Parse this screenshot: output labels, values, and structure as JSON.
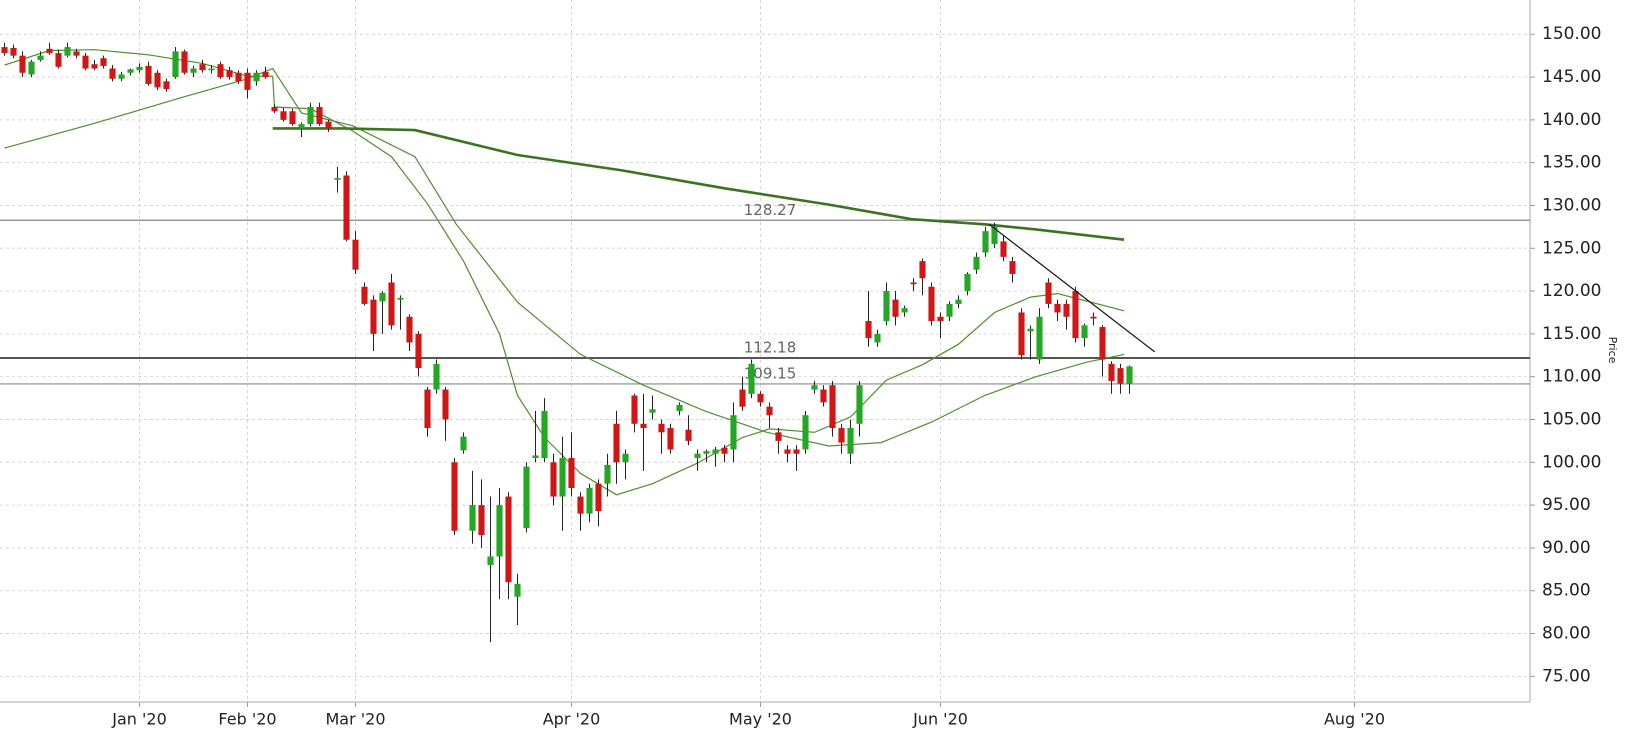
{
  "chart_data": {
    "type": "candlestick",
    "y_label": "Price",
    "up_color": "#22a822",
    "down_color": "#d11616",
    "wick_color": "#222222",
    "grid": true,
    "xlim": [
      -0.5,
      169.5
    ],
    "ylim": [
      72,
      154
    ],
    "xticks": [
      {
        "value": 15,
        "label": "Jan '20"
      },
      {
        "value": 27,
        "label": "Feb '20"
      },
      {
        "value": 39,
        "label": "Mar '20"
      },
      {
        "value": 63,
        "label": "Apr '20"
      },
      {
        "value": 84,
        "label": "May '20"
      },
      {
        "value": 104,
        "label": "Jun '20"
      },
      {
        "value": 150,
        "label": "Aug '20"
      }
    ],
    "yticks": [
      {
        "value": 75,
        "label": "75.00"
      },
      {
        "value": 80,
        "label": "80.00"
      },
      {
        "value": 85,
        "label": "85.00"
      },
      {
        "value": 90,
        "label": "90.00"
      },
      {
        "value": 95,
        "label": "95.00"
      },
      {
        "value": 100,
        "label": "100.00"
      },
      {
        "value": 105,
        "label": "105.00"
      },
      {
        "value": 110,
        "label": "110.00"
      },
      {
        "value": 115,
        "label": "115.00"
      },
      {
        "value": 120,
        "label": "120.00"
      },
      {
        "value": 125,
        "label": "125.00"
      },
      {
        "value": 130,
        "label": "130.00"
      },
      {
        "value": 135,
        "label": "135.00"
      },
      {
        "value": 140,
        "label": "140.00"
      },
      {
        "value": 145,
        "label": "145.00"
      },
      {
        "value": 150,
        "label": "150.00"
      }
    ],
    "open": [
      148.5,
      148.4,
      147.5,
      145.3,
      147,
      148.3,
      147.8,
      147.5,
      148,
      147.5,
      146.5,
      147.2,
      146,
      144.8,
      145.5,
      145.8,
      146.3,
      145.5,
      144.5,
      145,
      148,
      145.5,
      146.5,
      145.8,
      146.5,
      145.8,
      145.5,
      145.5,
      144.5,
      145.6,
      141.5,
      141,
      141,
      139,
      139.5,
      141.5,
      139.8,
      133,
      133.5,
      126,
      120.5,
      119,
      118.8,
      121,
      119,
      117,
      115,
      108.5,
      108.5,
      108.5,
      100,
      101.4,
      92,
      95,
      88,
      89,
      96,
      84.3,
      92.3,
      100.5,
      100.5,
      100,
      96,
      100.5,
      96,
      94,
      97.5,
      97.5,
      104.5,
      100,
      107.8,
      104.5,
      105.8,
      104.5,
      104,
      106,
      103.8,
      100.5,
      101,
      101,
      101.7,
      101.5,
      108.5,
      108,
      108,
      106.5,
      103.5,
      101.5,
      101.5,
      101.5,
      108.5,
      108.5,
      109,
      104,
      101,
      104.5,
      116.5,
      114,
      116.5,
      119,
      117.5,
      121,
      123.5,
      120.5,
      117,
      117,
      118.5,
      120,
      122.5,
      124.5,
      125.5,
      125.8,
      123.5,
      117.5,
      115.3,
      112,
      121,
      118.5,
      118.5,
      120,
      114.5,
      117,
      115.8,
      111.5,
      111,
      109.2
    ],
    "high": [
      149,
      148.8,
      148,
      147,
      148,
      149,
      148.2,
      149,
      148.3,
      147.8,
      147,
      147.5,
      146.4,
      145.6,
      146,
      146.6,
      146.8,
      145.8,
      144.8,
      148.5,
      148.2,
      146.3,
      147,
      146.4,
      146.8,
      146.2,
      145.8,
      146,
      145.8,
      146.2,
      141.8,
      141.4,
      141.3,
      139.7,
      142,
      142,
      140,
      134.5,
      134,
      127,
      121,
      119.5,
      120,
      122,
      119.5,
      117.3,
      115.3,
      108.8,
      112,
      108.8,
      100.5,
      103.5,
      99,
      98,
      96,
      97,
      96.5,
      87,
      100,
      106,
      107.5,
      101,
      103,
      103.5,
      96.5,
      97.5,
      98,
      101,
      106,
      101.5,
      108,
      108,
      107.8,
      105,
      104.5,
      107,
      105.5,
      101.5,
      101.5,
      101.8,
      102,
      107,
      110,
      112,
      108.3,
      107,
      104,
      102,
      102,
      106,
      109.5,
      109,
      109.5,
      104.5,
      105,
      109.5,
      120,
      115.5,
      121,
      120,
      118.3,
      121.5,
      123.8,
      121,
      117.5,
      118.8,
      119.5,
      122.2,
      124.5,
      127.5,
      128,
      126.5,
      124,
      118,
      116,
      118,
      121.5,
      119,
      119,
      120.5,
      116.2,
      117.5,
      116,
      111.8,
      111.5,
      111.3
    ],
    "low": [
      147.5,
      147.2,
      145,
      145,
      146.8,
      147.6,
      146,
      147.3,
      147.2,
      145.8,
      145.8,
      146,
      144.5,
      144.5,
      145.2,
      145.5,
      144,
      143.5,
      143.3,
      144.8,
      145.3,
      145,
      145.5,
      145.4,
      144.8,
      144.7,
      144.2,
      142.5,
      144,
      144.8,
      140.8,
      139.8,
      139.3,
      138,
      139.2,
      139.3,
      138.6,
      131.5,
      125.8,
      122,
      118.3,
      113,
      115,
      115.5,
      115.5,
      113,
      110,
      103,
      108,
      102.5,
      91.5,
      101,
      90.5,
      90,
      79,
      84,
      84,
      81,
      91.8,
      100,
      100,
      95,
      92,
      96,
      92,
      93,
      92.5,
      96,
      97.5,
      98,
      103.5,
      99,
      105,
      101,
      101,
      105.5,
      102,
      99,
      100,
      99.5,
      100,
      100,
      106,
      107.5,
      106.5,
      104,
      101,
      100,
      99,
      101,
      108,
      106.5,
      103,
      101,
      99.8,
      103,
      113.5,
      113.5,
      116,
      116,
      117,
      120,
      119.5,
      116,
      114.5,
      116.5,
      118,
      119.5,
      122,
      124,
      125,
      123.5,
      121,
      112,
      112,
      111.5,
      118,
      116.5,
      115.5,
      114,
      113.5,
      116,
      110,
      108,
      108,
      108
    ],
    "close": [
      147.8,
      147.5,
      145.5,
      146.8,
      147.5,
      147.8,
      146.2,
      148.5,
      147.5,
      146,
      146,
      146.3,
      144.8,
      145.3,
      145.9,
      146.2,
      144.2,
      143.8,
      143.6,
      148,
      145.5,
      146,
      145.8,
      146,
      145,
      145,
      144.5,
      143.5,
      145.5,
      145,
      141,
      140,
      139.5,
      139.5,
      141.5,
      139.5,
      139,
      133.2,
      126,
      122.5,
      118.5,
      115,
      119.8,
      116,
      119.2,
      114,
      111,
      104,
      111.5,
      105,
      92,
      103,
      95,
      91.5,
      89,
      95,
      86,
      85.8,
      99.5,
      100.8,
      106,
      96,
      100.5,
      97,
      94,
      97,
      94.3,
      99.7,
      100,
      101,
      104.5,
      104,
      106.2,
      103.5,
      101.5,
      106.7,
      102.5,
      101,
      101.3,
      101.5,
      101,
      105.5,
      106.5,
      111.5,
      107,
      105.5,
      102.5,
      101,
      101,
      105.5,
      109,
      107,
      104,
      102.3,
      104,
      109,
      114.5,
      115,
      120,
      117,
      118,
      120.8,
      121.5,
      116.5,
      116.5,
      118.5,
      119,
      122,
      124,
      127,
      127.5,
      124,
      122,
      112.5,
      115.6,
      117,
      118.5,
      117.5,
      117,
      114.5,
      116,
      116.8,
      112,
      109.5,
      109.2,
      111.2
    ],
    "overlays": [
      {
        "color": "#4f8f2f",
        "width": 1.2,
        "x": [
          0,
          5,
          10,
          16,
          22,
          27,
          29.8,
          30,
          34,
          38.7,
          43,
          47,
          51,
          55,
          57,
          60,
          64,
          68,
          72,
          77,
          82,
          85,
          90,
          94,
          98,
          102,
          106,
          110,
          114,
          117,
          120,
          124.4
        ],
        "values": [
          146.4,
          148.1,
          148.2,
          147.6,
          146.6,
          145.1,
          145.1,
          141.5,
          141.3,
          138.7,
          135.7,
          130.2,
          123.5,
          115,
          107.8,
          102.9,
          98.7,
          96.2,
          97.5,
          99.9,
          102.9,
          103.9,
          103.5,
          105.3,
          109.6,
          111.4,
          113.8,
          117.5,
          119.3,
          119.7,
          118.9,
          117.7
        ]
      },
      {
        "color": "#4f8f2f",
        "width": 1.2,
        "x": [
          0,
          10,
          20,
          27,
          29.8,
          33,
          38.7,
          45.6,
          50.2,
          57,
          64,
          71,
          77.8,
          84.7,
          91.6,
          97.4,
          103,
          108.9,
          114.6,
          120.3,
          124.4
        ],
        "values": [
          136.7,
          139.6,
          142.7,
          144.8,
          146,
          140.8,
          139.3,
          135.7,
          127.8,
          118.7,
          112.6,
          109,
          106,
          103.5,
          101.9,
          102.3,
          104.7,
          107.8,
          110,
          111.7,
          112.6
        ]
      },
      {
        "color": "#3a7420",
        "width": 2.6,
        "x": [
          29.8,
          37.6,
          45.6,
          57,
          68.6,
          80,
          91.6,
          100.8,
          108.9,
          114.6,
          124.4
        ],
        "values": [
          139,
          139,
          138.8,
          135.9,
          134.1,
          132,
          130.1,
          128.4,
          127.8,
          127.2,
          126
        ]
      }
    ],
    "levels": [
      128.27,
      112.18,
      109.15
    ],
    "trendline": {
      "color": "#111111",
      "x": [
        109.4,
        127.8
      ],
      "values": [
        127.8,
        112.9
      ]
    }
  }
}
